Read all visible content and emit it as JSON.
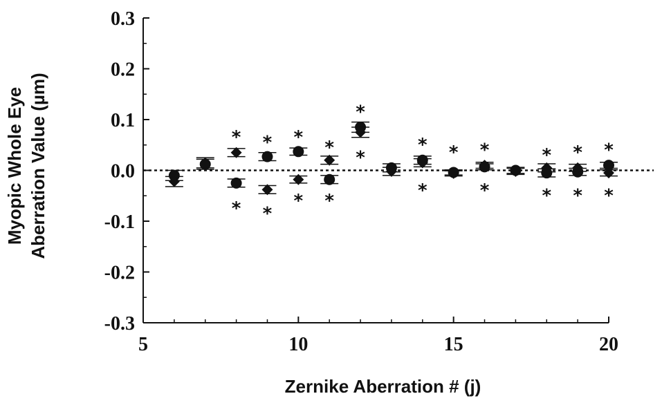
{
  "chart_data": {
    "type": "scatter",
    "xlabel": "Zernike Aberration # (j)",
    "ylabel_lines": [
      "Myopic Whole Eye",
      "Aberration Value (µm)"
    ],
    "xlim": [
      5,
      20
    ],
    "ylim": [
      -0.3,
      0.3
    ],
    "x_ticks": [
      5,
      10,
      15,
      20
    ],
    "x_tick_labels": [
      "5",
      "10",
      "15",
      "20"
    ],
    "y_ticks": [
      0.3,
      0.2,
      0.1,
      0.0,
      -0.1,
      -0.2,
      -0.3
    ],
    "y_tick_labels": [
      "0.3",
      "0.2",
      "0.1",
      "0.0",
      "-0.1",
      "-0.2",
      "-0.3"
    ],
    "reference_line": {
      "y": 0.0,
      "style": "dotted"
    },
    "grid": false,
    "series": [
      {
        "marker": "circle",
        "points": [
          {
            "x": 6,
            "y": -0.01,
            "err": 0.01
          },
          {
            "x": 7,
            "y": 0.012,
            "err": 0.01
          },
          {
            "x": 8,
            "y": -0.025,
            "err": 0.008
          },
          {
            "x": 9,
            "y": 0.027,
            "err": 0.008
          },
          {
            "x": 10,
            "y": 0.037,
            "err": 0.007
          },
          {
            "x": 11,
            "y": -0.018,
            "err": 0.008
          },
          {
            "x": 12,
            "y": 0.085,
            "err": 0.01
          },
          {
            "x": 13,
            "y": 0.005,
            "err": 0.008
          },
          {
            "x": 14,
            "y": 0.02,
            "err": 0.008
          },
          {
            "x": 15,
            "y": -0.004,
            "err": 0.005
          },
          {
            "x": 16,
            "y": 0.007,
            "err": 0.006
          },
          {
            "x": 17,
            "y": 0.0,
            "err": 0.006
          },
          {
            "x": 18,
            "y": -0.005,
            "err": 0.008
          },
          {
            "x": 19,
            "y": -0.003,
            "err": 0.007
          },
          {
            "x": 20,
            "y": 0.01,
            "err": 0.006
          }
        ]
      },
      {
        "marker": "diamond",
        "points": [
          {
            "x": 6,
            "y": -0.022,
            "err": 0.01
          },
          {
            "x": 7,
            "y": 0.015,
            "err": 0.01
          },
          {
            "x": 8,
            "y": 0.035,
            "err": 0.008
          },
          {
            "x": 9,
            "y": -0.038,
            "err": 0.008
          },
          {
            "x": 10,
            "y": -0.018,
            "err": 0.007
          },
          {
            "x": 11,
            "y": 0.02,
            "err": 0.008
          },
          {
            "x": 12,
            "y": 0.075,
            "err": 0.01
          },
          {
            "x": 13,
            "y": -0.002,
            "err": 0.008
          },
          {
            "x": 14,
            "y": 0.015,
            "err": 0.008
          },
          {
            "x": 15,
            "y": -0.006,
            "err": 0.005
          },
          {
            "x": 16,
            "y": 0.01,
            "err": 0.006
          },
          {
            "x": 17,
            "y": -0.002,
            "err": 0.006
          },
          {
            "x": 18,
            "y": 0.005,
            "err": 0.008
          },
          {
            "x": 19,
            "y": 0.005,
            "err": 0.007
          },
          {
            "x": 20,
            "y": -0.005,
            "err": 0.006
          }
        ]
      }
    ],
    "annotations": {
      "symbol": "*",
      "marks": [
        {
          "x": 8,
          "y": 0.07
        },
        {
          "x": 8,
          "y": -0.07
        },
        {
          "x": 9,
          "y": 0.06
        },
        {
          "x": 9,
          "y": -0.08
        },
        {
          "x": 10,
          "y": 0.07
        },
        {
          "x": 10,
          "y": -0.055
        },
        {
          "x": 11,
          "y": 0.05
        },
        {
          "x": 11,
          "y": -0.055
        },
        {
          "x": 12,
          "y": 0.12
        },
        {
          "x": 12,
          "y": 0.03
        },
        {
          "x": 14,
          "y": 0.055
        },
        {
          "x": 14,
          "y": -0.035
        },
        {
          "x": 15,
          "y": 0.04
        },
        {
          "x": 16,
          "y": 0.045
        },
        {
          "x": 16,
          "y": -0.035
        },
        {
          "x": 18,
          "y": 0.035
        },
        {
          "x": 18,
          "y": -0.045
        },
        {
          "x": 19,
          "y": 0.04
        },
        {
          "x": 19,
          "y": -0.045
        },
        {
          "x": 20,
          "y": 0.045
        },
        {
          "x": 20,
          "y": -0.045
        }
      ]
    },
    "colors": {
      "marker": "#111111",
      "axis": "#111111",
      "background": "#ffffff"
    }
  }
}
